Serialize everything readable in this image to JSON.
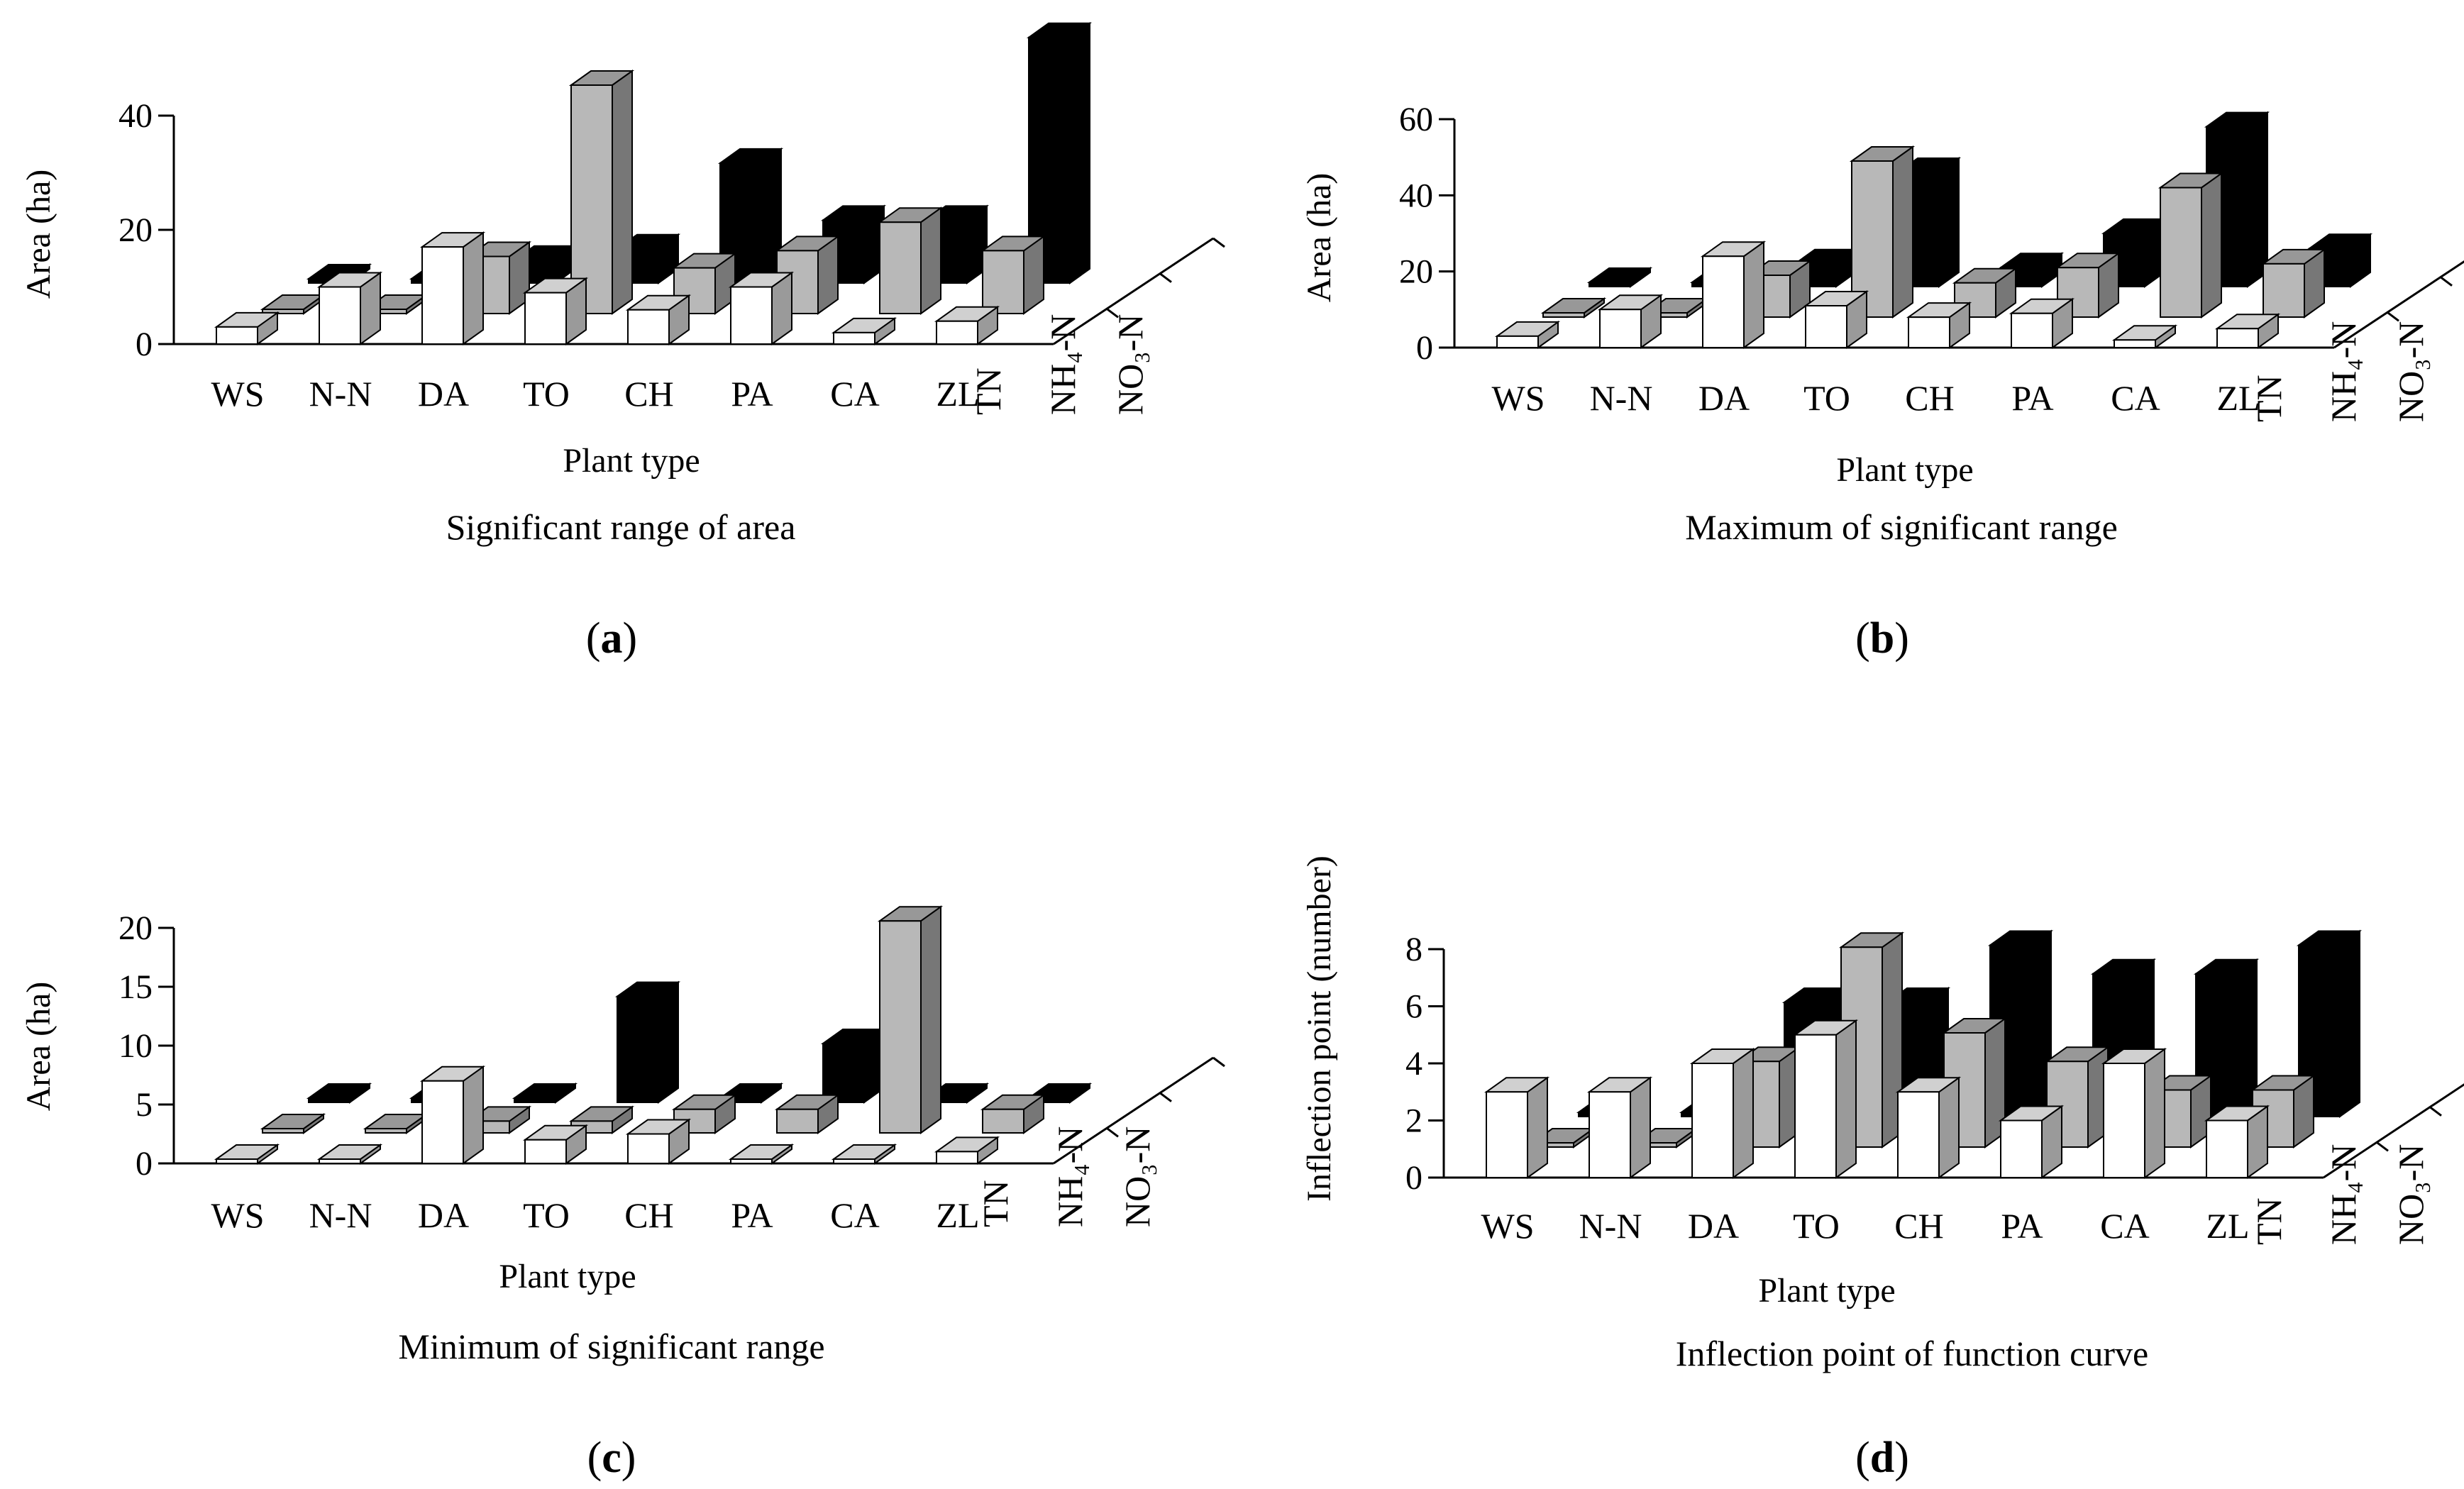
{
  "colors": {
    "TN": {
      "front": "#ffffff",
      "top": "#d0d0d0",
      "side": "#9a9a9a"
    },
    "NH4-N": {
      "front": "#b8b8b8",
      "top": "#989898",
      "side": "#777777"
    },
    "NO3-N": {
      "front": "#000000",
      "top": "#000000",
      "side": "#000000"
    },
    "ink": "#000000"
  },
  "chart_data": [
    {
      "panel": "a",
      "type": "bar3d",
      "caption": "Significant range of area",
      "label_open": "(",
      "letter": "a",
      "label_close": ")",
      "xlabel": "Plant type",
      "ylabel": "Area (ha)",
      "ylim": [
        0,
        40
      ],
      "yticks": [
        0,
        20,
        40
      ],
      "categories": [
        "WS",
        "N-N",
        "DA",
        "TO",
        "CH",
        "PA",
        "CA",
        "ZL"
      ],
      "depth_labels": [
        "TN",
        "NH₄-N",
        "NO₃-N"
      ],
      "series": [
        {
          "name": "TN",
          "values": [
            3,
            10,
            17,
            9,
            6,
            10,
            2,
            4
          ]
        },
        {
          "name": "NH4-N",
          "values": [
            0,
            0,
            10,
            40,
            8,
            11,
            16,
            11
          ]
        },
        {
          "name": "NO3-N",
          "values": [
            0,
            0,
            4,
            6,
            21,
            11,
            11,
            43
          ]
        }
      ]
    },
    {
      "panel": "b",
      "type": "bar3d",
      "caption": "Maximum of significant range",
      "label_open": "(",
      "letter": "b",
      "label_close": ")",
      "xlabel": "Plant type",
      "ylabel": "Area (ha)",
      "ylim": [
        0,
        60
      ],
      "yticks": [
        0,
        20,
        40,
        60
      ],
      "categories": [
        "WS",
        "N-N",
        "DA",
        "TO",
        "CH",
        "PA",
        "CA",
        "ZL"
      ],
      "depth_labels": [
        "TN",
        "NH₄-N",
        "NO₃-N"
      ],
      "series": [
        {
          "name": "TN",
          "values": [
            3,
            10,
            24,
            11,
            8,
            9,
            2,
            5
          ]
        },
        {
          "name": "NH4-N",
          "values": [
            0,
            0,
            11,
            41,
            9,
            13,
            34,
            14
          ]
        },
        {
          "name": "NO3-N",
          "values": [
            0,
            0,
            6,
            30,
            5,
            14,
            42,
            10
          ]
        }
      ]
    },
    {
      "panel": "c",
      "type": "bar3d",
      "caption": "Minimum of significant range",
      "label_open": "(",
      "letter": "c",
      "label_close": ")",
      "xlabel": "Plant type",
      "ylabel": "Area (ha)",
      "ylim": [
        0,
        20
      ],
      "yticks": [
        0,
        5,
        10,
        15,
        20
      ],
      "categories": [
        "WS",
        "N-N",
        "DA",
        "TO",
        "CH",
        "PA",
        "CA",
        "ZL"
      ],
      "depth_labels": [
        "TN",
        "NH₄-N",
        "NO₃-N"
      ],
      "series": [
        {
          "name": "TN",
          "values": [
            0,
            0,
            7,
            2,
            2.5,
            0,
            0,
            1
          ]
        },
        {
          "name": "NH4-N",
          "values": [
            0,
            0,
            1,
            1,
            2,
            2,
            18,
            2
          ]
        },
        {
          "name": "NO3-N",
          "values": [
            0,
            0,
            0,
            9,
            0,
            5,
            0,
            0
          ]
        }
      ]
    },
    {
      "panel": "d",
      "type": "bar3d",
      "caption": "Inflection point of function curve",
      "label_open": "(",
      "letter": "d",
      "label_close": ")",
      "xlabel": "Plant type",
      "ylabel": "Inflection point (number)",
      "ylim": [
        0,
        8
      ],
      "yticks": [
        0,
        2,
        4,
        6,
        8
      ],
      "categories": [
        "WS",
        "N-N",
        "DA",
        "TO",
        "CH",
        "PA",
        "CA",
        "ZL"
      ],
      "depth_labels": [
        "TN",
        "NH₄-N",
        "NO₃-N"
      ],
      "series": [
        {
          "name": "TN",
          "values": [
            3,
            3,
            4,
            5,
            3,
            2,
            4,
            2
          ]
        },
        {
          "name": "NH4-N",
          "values": [
            0,
            0,
            3,
            7,
            4,
            3,
            2,
            2
          ]
        },
        {
          "name": "NO3-N",
          "values": [
            0,
            0,
            4,
            4,
            6,
            5,
            5,
            6
          ]
        }
      ]
    }
  ],
  "ui": {
    "panel_a": {
      "x": 0,
      "letter": "a"
    }
  }
}
